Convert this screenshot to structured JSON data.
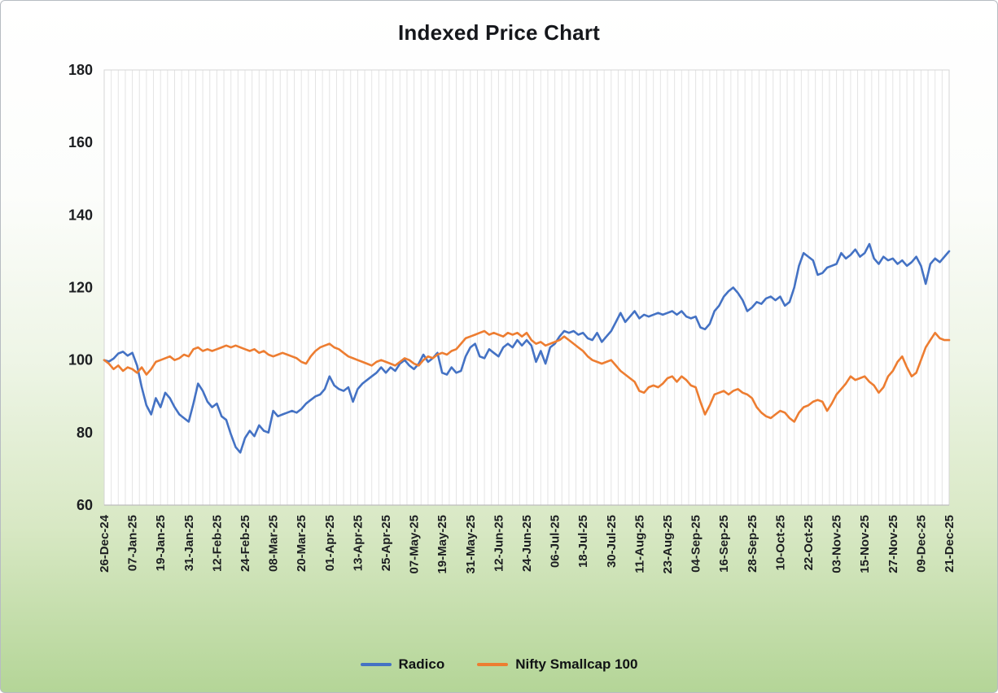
{
  "chart_data": {
    "type": "line",
    "title": "Indexed Price Chart",
    "xlabel": "",
    "ylabel": "",
    "ylim": [
      60,
      180
    ],
    "yticks": [
      60,
      80,
      100,
      120,
      140,
      160,
      180
    ],
    "grid": "vertical-only",
    "legend_position": "bottom",
    "points_per_tick": 6,
    "x_tick_labels": [
      "26-Dec-24",
      "07-Jan-25",
      "19-Jan-25",
      "31-Jan-25",
      "12-Feb-25",
      "24-Feb-25",
      "08-Mar-25",
      "20-Mar-25",
      "01-Apr-25",
      "13-Apr-25",
      "25-Apr-25",
      "07-May-25",
      "19-May-25",
      "31-May-25",
      "12-Jun-25",
      "24-Jun-25",
      "06-Jul-25",
      "18-Jul-25",
      "30-Jul-25",
      "11-Aug-25",
      "23-Aug-25",
      "04-Sep-25",
      "16-Sep-25",
      "28-Sep-25",
      "10-Oct-25",
      "22-Oct-25",
      "03-Nov-25",
      "15-Nov-25",
      "27-Nov-25",
      "09-Dec-25",
      "21-Dec-25"
    ],
    "series": [
      {
        "name": "Radico",
        "color": "#4472C4",
        "values": [
          100,
          99.6,
          100.4,
          101.8,
          102.3,
          101.2,
          102,
          98.5,
          92.5,
          87.5,
          85,
          89.5,
          87,
          91,
          89.5,
          87,
          85,
          84,
          83,
          88,
          93.5,
          91.5,
          88.5,
          87,
          88,
          84.5,
          83.5,
          79.5,
          76,
          74.5,
          78.5,
          80.5,
          79,
          82,
          80.5,
          80,
          86,
          84.5,
          85,
          85.5,
          86,
          85.5,
          86.5,
          88,
          89,
          90,
          90.5,
          92,
          95.5,
          93,
          92,
          91.5,
          92.5,
          88.5,
          92,
          93.5,
          94.5,
          95.5,
          96.5,
          98,
          96.5,
          98,
          97,
          99,
          100,
          98.5,
          97.5,
          99,
          101.5,
          99.5,
          100.5,
          102,
          96.5,
          96,
          98,
          96.5,
          97,
          101,
          103.5,
          104.5,
          101,
          100.5,
          103,
          102,
          101,
          103.5,
          104.5,
          103.5,
          105.5,
          104,
          105.5,
          104,
          99.5,
          102.5,
          99,
          103.5,
          104.5,
          106.5,
          108,
          107.5,
          108,
          107,
          107.5,
          106,
          105.5,
          107.5,
          105,
          106.5,
          108,
          110.5,
          113,
          110.5,
          112,
          113.5,
          111.5,
          112.5,
          112,
          112.5,
          113,
          112.5,
          113,
          113.5,
          112.5,
          113.5,
          112,
          111.5,
          112,
          109,
          108.5,
          110,
          113.5,
          115,
          117.5,
          119,
          120,
          118.5,
          116.5,
          113.5,
          114.5,
          116,
          115.5,
          117,
          117.5,
          116.5,
          117.5,
          115,
          116,
          120,
          126,
          129.5,
          128.5,
          127.5,
          123.5,
          124,
          125.5,
          126,
          126.5,
          129.5,
          128,
          129,
          130.5,
          128.5,
          129.5,
          132,
          128,
          126.5,
          128.5,
          127.5,
          128,
          126.5,
          127.5,
          126,
          127,
          128.5,
          126,
          121,
          126.5,
          128,
          127,
          128.5,
          130
        ]
      },
      {
        "name": "Nifty Smallcap 100",
        "color": "#ED7D31",
        "values": [
          100,
          99,
          97.5,
          98.5,
          97,
          98,
          97.5,
          96.5,
          98,
          96,
          97.5,
          99.5,
          100,
          100.5,
          101,
          100,
          100.5,
          101.5,
          101,
          103,
          103.5,
          102.5,
          103,
          102.5,
          103,
          103.5,
          104,
          103.5,
          104,
          103.5,
          103,
          102.5,
          103,
          102,
          102.5,
          101.5,
          101,
          101.5,
          102,
          101.5,
          101,
          100.5,
          99.5,
          99,
          101,
          102.5,
          103.5,
          104,
          104.5,
          103.5,
          103,
          102,
          101,
          100.5,
          100,
          99.5,
          99,
          98.5,
          99.5,
          100,
          99.5,
          99,
          98.5,
          99.5,
          100.5,
          100,
          99,
          98.5,
          100,
          101,
          100.5,
          101.5,
          102,
          101.5,
          102.5,
          103,
          104.5,
          106,
          106.5,
          107,
          107.5,
          108,
          107,
          107.5,
          107,
          106.5,
          107.5,
          107,
          107.5,
          106.5,
          107.5,
          105.5,
          104.5,
          105,
          104,
          104.5,
          105,
          105.5,
          106.5,
          105.5,
          104.5,
          103.5,
          102.5,
          101,
          100,
          99.5,
          99,
          99.5,
          100,
          98.5,
          97,
          96,
          95,
          94,
          91.5,
          91,
          92.5,
          93,
          92.5,
          93.5,
          95,
          95.5,
          94,
          95.5,
          94.5,
          93,
          92.5,
          88.5,
          85,
          87.5,
          90.5,
          91,
          91.5,
          90.5,
          91.5,
          92,
          91,
          90.5,
          89.5,
          87,
          85.5,
          84.5,
          84,
          85,
          86,
          85.5,
          84,
          83,
          85.5,
          87,
          87.5,
          88.5,
          89,
          88.5,
          86,
          88,
          90.5,
          92,
          93.5,
          95.5,
          94.5,
          95,
          95.5,
          94,
          93,
          91,
          92.5,
          95.5,
          97,
          99.5,
          101,
          98,
          95.5,
          96.5,
          100,
          103.5,
          105.5,
          107.5,
          106,
          105.5,
          105.5
        ]
      }
    ]
  }
}
